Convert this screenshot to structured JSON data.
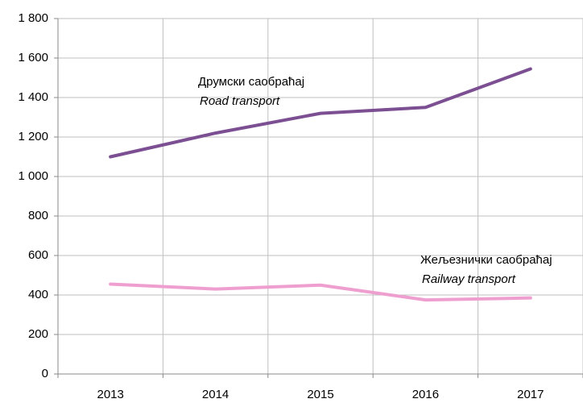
{
  "chart_data": {
    "type": "line",
    "categories": [
      "2013",
      "2014",
      "2015",
      "2016",
      "2017"
    ],
    "series": [
      {
        "name": "Друмски саобраћај",
        "name_en": "Road transport",
        "color": "#7b4f92",
        "values": [
          1100,
          1220,
          1320,
          1350,
          1545
        ]
      },
      {
        "name": "Жељезнички саобраћај",
        "name_en": "Railway transport",
        "color": "#ee9fd0",
        "values": [
          455,
          430,
          450,
          375,
          385
        ]
      }
    ],
    "ylim": [
      0,
      1800
    ],
    "yticks": [
      0,
      200,
      400,
      600,
      800,
      {
        "value": 1000,
        "label": "1 000"
      },
      {
        "value": 1200,
        "label": "1 200"
      },
      {
        "value": 1400,
        "label": "1 400"
      },
      {
        "value": 1600,
        "label": "1 600"
      },
      {
        "value": 1800,
        "label": "1 800"
      }
    ],
    "grid": true
  }
}
